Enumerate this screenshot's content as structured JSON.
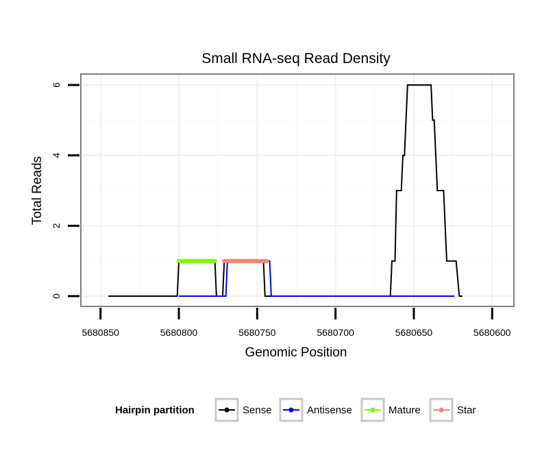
{
  "chart_data": {
    "type": "line",
    "title": "Small RNA-seq Read Density",
    "xlabel": "Genomic Position",
    "ylabel": "Total Reads",
    "xlim": [
      5680856,
      5680594
    ],
    "x_reversed": true,
    "ylim": [
      0,
      6
    ],
    "x_ticks": [
      5680850,
      5680800,
      5680750,
      5680700,
      5680650,
      5680600
    ],
    "x_tick_labels": [
      "5680850",
      "5680800",
      "5680750",
      "5680700",
      "5680650",
      "5680600"
    ],
    "y_ticks": [
      0,
      2,
      4,
      6
    ],
    "y_tick_labels": [
      "0",
      "2",
      "4",
      "6"
    ],
    "grid": true,
    "legend": {
      "title": "Hairpin partition",
      "placement": "bottom",
      "entries": [
        {
          "name": "Sense",
          "color": "#000000"
        },
        {
          "name": "Antisense",
          "color": "#0000ff"
        },
        {
          "name": "Mature",
          "color": "#7cfc00"
        },
        {
          "name": "Star",
          "color": "#fa8072"
        }
      ]
    },
    "series": [
      {
        "name": "Sense",
        "color": "#000000",
        "points": [
          [
            5680845,
            0
          ],
          [
            5680801,
            0
          ],
          [
            5680800,
            1
          ],
          [
            5680777,
            1
          ],
          [
            5680776,
            0
          ],
          [
            5680772,
            0
          ],
          [
            5680771,
            1
          ],
          [
            5680746,
            1
          ],
          [
            5680745,
            0
          ],
          [
            5680665,
            0
          ],
          [
            5680664,
            1
          ],
          [
            5680662,
            1
          ],
          [
            5680661,
            3
          ],
          [
            5680658,
            3
          ],
          [
            5680657,
            4
          ],
          [
            5680656,
            4
          ],
          [
            5680654,
            6
          ],
          [
            5680639,
            6
          ],
          [
            5680638,
            5
          ],
          [
            5680637,
            5
          ],
          [
            5680635,
            3
          ],
          [
            5680631,
            3
          ],
          [
            5680629,
            1
          ],
          [
            5680623,
            1
          ],
          [
            5680621,
            0
          ],
          [
            5680619,
            0
          ]
        ]
      },
      {
        "name": "Antisense",
        "color": "#0000ff",
        "points": [
          [
            5680800,
            0
          ],
          [
            5680770,
            0
          ],
          [
            5680769,
            1
          ],
          [
            5680742,
            1
          ],
          [
            5680741,
            0
          ],
          [
            5680624,
            0
          ]
        ]
      },
      {
        "name": "Mature",
        "color": "#7cfc00",
        "points": [
          [
            5680800,
            1
          ],
          [
            5680777,
            1
          ]
        ]
      },
      {
        "name": "Star",
        "color": "#fa8072",
        "points": [
          [
            5680771,
            1
          ],
          [
            5680744,
            1
          ]
        ]
      }
    ]
  }
}
